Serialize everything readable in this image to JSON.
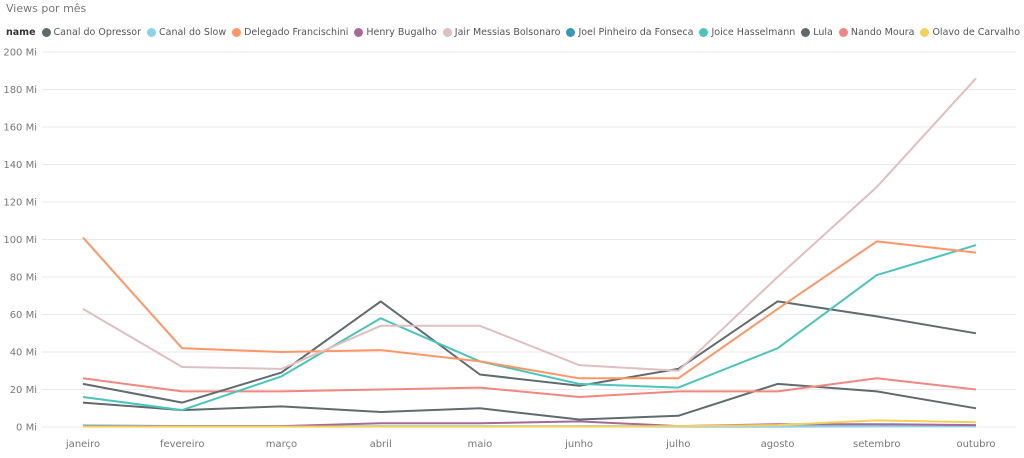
{
  "chart_data": {
    "type": "line",
    "title": "Views por mês",
    "legend_title": "name",
    "legend_position": "top-left",
    "grid": true,
    "xlabel": "",
    "ylabel": "",
    "categories": [
      "janeiro",
      "fevereiro",
      "março",
      "abril",
      "maio",
      "junho",
      "julho",
      "agosto",
      "setembro",
      "outubro"
    ],
    "y_ticks": [
      0,
      20,
      40,
      60,
      80,
      100,
      120,
      140,
      160,
      180,
      200
    ],
    "y_tick_labels": [
      "0 Mi",
      "20 Mi",
      "40 Mi",
      "60 Mi",
      "80 Mi",
      "100 Mi",
      "120 Mi",
      "140 Mi",
      "160 Mi",
      "180 Mi",
      "200 Mi"
    ],
    "ylim": [
      0,
      200
    ],
    "series": [
      {
        "name": "Canal do Opressor",
        "color": "#5f6b6d",
        "values": [
          13,
          9,
          11,
          8,
          10,
          4,
          6,
          23,
          19,
          10
        ]
      },
      {
        "name": "Canal do Slow",
        "color": "#8ad4eb",
        "values": [
          1,
          0.5,
          0.5,
          0.5,
          0.5,
          0.5,
          0.5,
          0.5,
          0.5,
          0.5
        ]
      },
      {
        "name": "Delegado Francischini",
        "color": "#fe9666",
        "values": [
          101,
          42,
          40,
          41,
          35,
          26,
          26,
          63,
          99,
          93
        ]
      },
      {
        "name": "Henry Bugalho",
        "color": "#a66999",
        "values": [
          0.5,
          0.5,
          0.5,
          2,
          2,
          3,
          0.5,
          1.5,
          1.5,
          1
        ]
      },
      {
        "name": "Jair Messias Bolsonaro",
        "color": "#dfbfbf",
        "values": [
          63,
          32,
          31,
          54,
          54,
          33,
          30,
          80,
          128,
          186
        ]
      },
      {
        "name": "Joel Pinheiro da Fonseca",
        "color": "#3599b8",
        "values": [
          0.3,
          0.3,
          0.3,
          0.3,
          0.3,
          0.3,
          0.3,
          0.3,
          0.5,
          0.5
        ]
      },
      {
        "name": "Joice Hasselmann",
        "color": "#4ac5bb",
        "values": [
          16,
          9,
          27,
          58,
          35,
          23,
          21,
          42,
          81,
          97
        ]
      },
      {
        "name": "Lula",
        "color": "#5f6b6d",
        "values": [
          23,
          13,
          29,
          67,
          28,
          22,
          31,
          67,
          59,
          50
        ]
      },
      {
        "name": "Nando Moura",
        "color": "#f28781",
        "values": [
          26,
          19,
          19,
          20,
          21,
          16,
          19,
          19,
          26,
          20
        ]
      },
      {
        "name": "Olavo de Carvalho",
        "color": "#f4d25a",
        "values": [
          0.2,
          0.2,
          0.2,
          0.2,
          0.2,
          0.2,
          0.5,
          1,
          3.5,
          2.5
        ]
      }
    ]
  }
}
